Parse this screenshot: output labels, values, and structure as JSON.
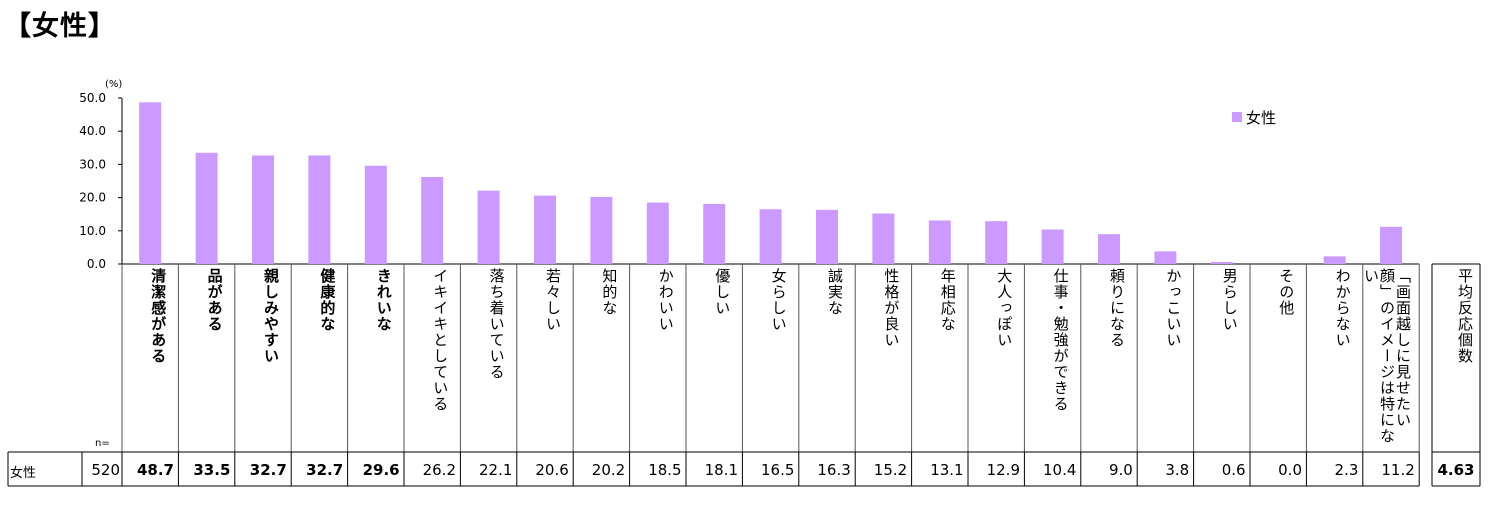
{
  "title": "【女性】",
  "colors": {
    "bar": "#cc99ff"
  },
  "chart_data": {
    "type": "bar",
    "yunit": "(%)",
    "ylim": [
      0,
      50
    ],
    "yticks": [
      "50.0",
      "40.0",
      "30.0",
      "20.0",
      "10.0",
      "0.0"
    ],
    "categories": [
      "清潔感がある",
      "品がある",
      "親しみやすい",
      "健康的な",
      "きれいな",
      "イキイキとしている",
      "落ち着いている",
      "若々しい",
      "知的な",
      "かわいい",
      "優しい",
      "女らしい",
      "誠実な",
      "性格が良い",
      "年相応な",
      "大人っぽい",
      "仕事・勉強ができる",
      "頼りになる",
      "かっこいい",
      "男らしい",
      "その他",
      "わからない",
      "「画面越しに見せたい顔」のイメージは特にない"
    ],
    "bold": [
      true,
      true,
      true,
      true,
      true,
      false,
      false,
      false,
      false,
      false,
      false,
      false,
      false,
      false,
      false,
      false,
      false,
      false,
      false,
      false,
      false,
      false,
      false
    ],
    "series": [
      {
        "name": "女性",
        "values": [
          48.7,
          33.5,
          32.7,
          32.7,
          29.6,
          26.2,
          22.1,
          20.6,
          20.2,
          18.5,
          18.1,
          16.5,
          16.3,
          15.2,
          13.1,
          12.9,
          10.4,
          9.0,
          3.8,
          0.6,
          0.0,
          2.3,
          11.2
        ],
        "labels": [
          "48.7",
          "33.5",
          "32.7",
          "32.7",
          "29.6",
          "26.2",
          "22.1",
          "20.6",
          "20.2",
          "18.5",
          "18.1",
          "16.5",
          "16.3",
          "15.2",
          "13.1",
          "12.9",
          "10.4",
          "9.0",
          "3.8",
          "0.6",
          "0.0",
          "2.3",
          "11.2"
        ]
      }
    ],
    "legend": {
      "position": "top-right",
      "label": "女性"
    }
  },
  "table": {
    "n_header": "n=",
    "row_label": "女性",
    "n_value": "520",
    "avg_header": "平均反応個数",
    "avg_value": "4.63"
  }
}
